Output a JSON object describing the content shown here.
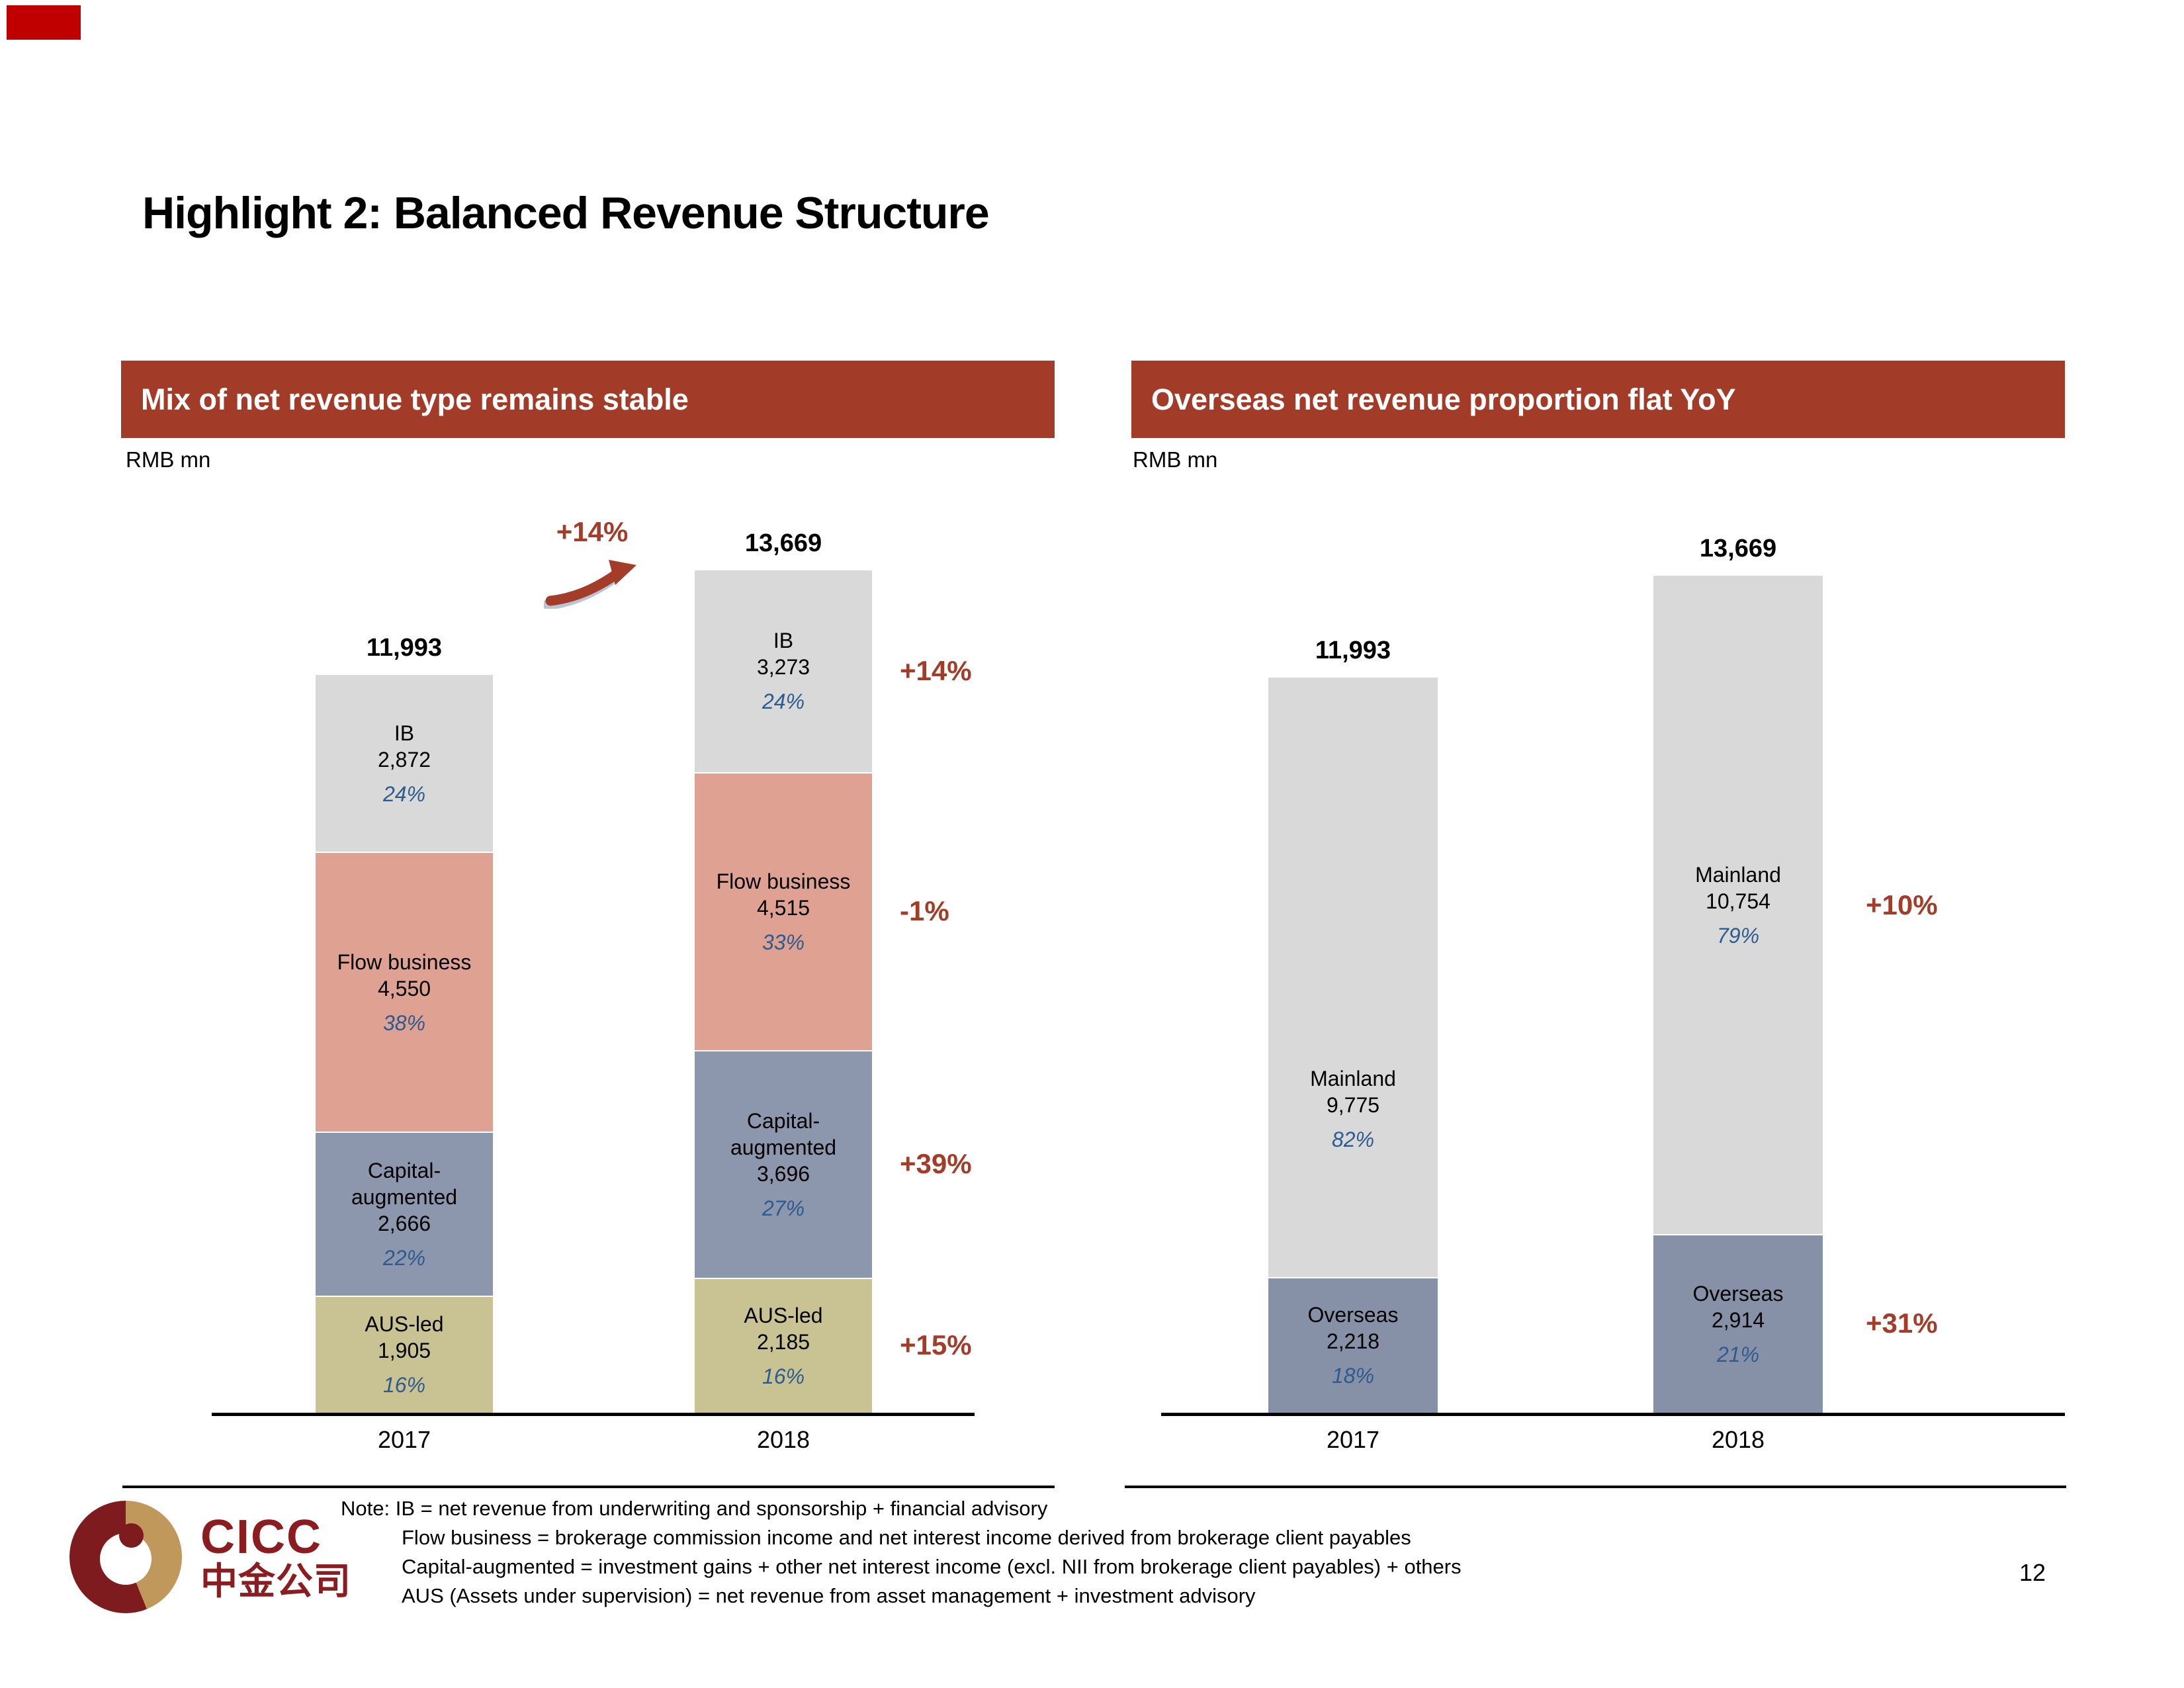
{
  "slide": {
    "title": "Highlight 2: Balanced Revenue Structure",
    "page_number": "12",
    "note_lines": [
      "Note: IB = net revenue from underwriting and sponsorship + financial advisory",
      "Flow business = brokerage commission income and net interest income derived from brokerage client payables",
      "Capital-augmented = investment gains + other net interest income (excl. NII from brokerage client payables) + others",
      "AUS (Assets under supervision) = net revenue from asset management + investment advisory"
    ]
  },
  "logo": {
    "latin": "CICC",
    "cjk": "中金公司"
  },
  "colors": {
    "header_red": "#A23C28",
    "growth_red": "#A33C28",
    "pct_blue": "#2D5B8E",
    "ib_gray": "#D9D9D9",
    "flow_salmon": "#DFA191",
    "capital_slate": "#8C96AC",
    "aus_khaki": "#C9C394",
    "mainland_gray": "#D9D9D9",
    "overseas_slate": "#8691A8",
    "logo_maroon": "#7E1B1E",
    "logo_gold": "#C0985C",
    "corner_red": "#C00000",
    "axis_black": "#000000"
  },
  "chart_data": [
    {
      "type": "bar",
      "stacked": true,
      "title": "Mix of net revenue type remains stable",
      "unit": "RMB mn",
      "categories": [
        "2017",
        "2018"
      ],
      "totals": [
        11993,
        13669
      ],
      "total_labels": [
        "11,993",
        "13,669"
      ],
      "total_growth": "+14%",
      "legend_position": "none",
      "series": [
        {
          "name": "AUS-led",
          "values": [
            1905,
            2185
          ],
          "value_labels": [
            "1,905",
            "2,185"
          ],
          "pcts": [
            "16%",
            "16%"
          ],
          "growth": "+15%",
          "color": "#C9C394"
        },
        {
          "name": "Capital-augmented",
          "values": [
            2666,
            3696
          ],
          "value_labels": [
            "2,666",
            "3,696"
          ],
          "pcts": [
            "22%",
            "27%"
          ],
          "growth": "+39%",
          "color": "#8C96AC"
        },
        {
          "name": "Flow business",
          "values": [
            4550,
            4515
          ],
          "value_labels": [
            "4,550",
            "4,515"
          ],
          "pcts": [
            "38%",
            "33%"
          ],
          "growth": "-1%",
          "color": "#DFA191"
        },
        {
          "name": "IB",
          "values": [
            2872,
            3273
          ],
          "value_labels": [
            "2,872",
            "3,273"
          ],
          "pcts": [
            "24%",
            "24%"
          ],
          "growth": "+14%",
          "color": "#D9D9D9"
        }
      ]
    },
    {
      "type": "bar",
      "stacked": true,
      "title": "Overseas net revenue proportion flat YoY",
      "unit": "RMB mn",
      "categories": [
        "2017",
        "2018"
      ],
      "totals": [
        11993,
        13669
      ],
      "total_labels": [
        "11,993",
        "13,669"
      ],
      "legend_position": "none",
      "series": [
        {
          "name": "Overseas",
          "values": [
            2218,
            2914
          ],
          "value_labels": [
            "2,218",
            "2,914"
          ],
          "pcts": [
            "18%",
            "21%"
          ],
          "growth": "+31%",
          "color": "#8691A8"
        },
        {
          "name": "Mainland",
          "values": [
            9775,
            10754
          ],
          "value_labels": [
            "9,775",
            "10,754"
          ],
          "pcts": [
            "82%",
            "79%"
          ],
          "growth": "+10%",
          "color": "#D9D9D9"
        }
      ]
    }
  ]
}
